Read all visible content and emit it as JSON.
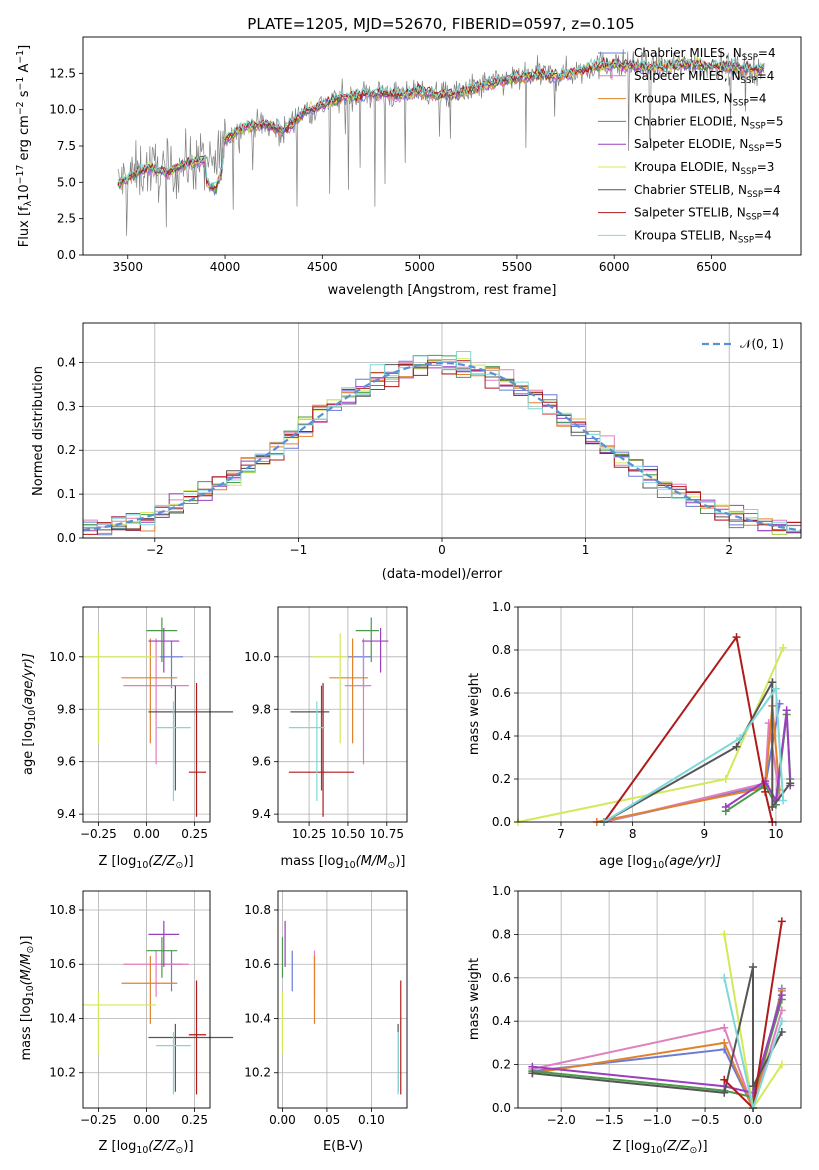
{
  "figure": {
    "title": "PLATE=1205, MJD=52670, FIBERID=0597, z=0.105"
  },
  "palette": {
    "Chabrier MILES": "#6b7bd6",
    "Salpeter MILES": "#e07fbd",
    "Kroupa MILES": "#e0822e",
    "Chabrier ELODIE": "#4a9a4a",
    "Salpeter ELODIE": "#9a3fc0",
    "Kroupa ELODIE": "#d4e85a",
    "Chabrier STELIB": "#555555",
    "Salpeter STELIB": "#b01a1a",
    "Kroupa STELIB": "#7fd8d8"
  },
  "chart_data": [
    {
      "id": "spectrum",
      "type": "line",
      "xlabel": "wavelength [Angstrom, rest frame]",
      "ylabel_main": "Flux [f",
      "ylabel_sub": "λ",
      "ylabel_unit": "10",
      "ylabel_exp": "−17",
      "ylabel_rest": " erg cm",
      "ylabel_exp2": "−2",
      "ylabel_rest2": " s",
      "ylabel_exp3": "−1",
      "ylabel_rest3": " A",
      "ylabel_exp4": "−1",
      "ylabel_end": "]",
      "xlim": [
        3270,
        6960
      ],
      "ylim": [
        0,
        15
      ],
      "xticks": [
        3500,
        4000,
        4500,
        5000,
        5500,
        6000,
        6500
      ],
      "yticks": [
        0.0,
        2.5,
        5.0,
        7.5,
        10.0,
        12.5
      ],
      "ytick_labels": [
        "0.0",
        "2.5",
        "5.0",
        "7.5",
        "10.0",
        "12.5"
      ],
      "continuum": [
        [
          3450,
          4.9
        ],
        [
          3500,
          5.3
        ],
        [
          3600,
          6.0
        ],
        [
          3700,
          5.7
        ],
        [
          3800,
          6.3
        ],
        [
          3900,
          6.5
        ],
        [
          3950,
          6.0
        ],
        [
          4000,
          8.0
        ],
        [
          4100,
          8.8
        ],
        [
          4200,
          9.0
        ],
        [
          4300,
          8.5
        ],
        [
          4400,
          9.8
        ],
        [
          4500,
          10.3
        ],
        [
          4600,
          10.8
        ],
        [
          4700,
          11.0
        ],
        [
          4800,
          11.1
        ],
        [
          4900,
          11.0
        ],
        [
          5000,
          11.3
        ],
        [
          5100,
          11.0
        ],
        [
          5200,
          11.1
        ],
        [
          5300,
          11.6
        ],
        [
          5400,
          11.9
        ],
        [
          5500,
          12.2
        ],
        [
          5600,
          12.4
        ],
        [
          5700,
          12.3
        ],
        [
          5800,
          12.6
        ],
        [
          5900,
          13.0
        ],
        [
          6000,
          13.1
        ],
        [
          6100,
          13.0
        ],
        [
          6200,
          12.9
        ],
        [
          6300,
          13.0
        ],
        [
          6400,
          13.2
        ],
        [
          6500,
          13.0
        ],
        [
          6600,
          12.9
        ],
        [
          6700,
          12.8
        ],
        [
          6770,
          12.8
        ]
      ],
      "legend": [
        {
          "label": "Chabrier MILES, N",
          "sub": "SSP",
          "end": "=4",
          "key": "Chabrier MILES",
          "marker": false
        },
        {
          "label": "Salpeter MILES, N",
          "sub": "SSP",
          "end": "=4",
          "key": "Salpeter MILES",
          "marker": true
        },
        {
          "label": "Kroupa MILES, N",
          "sub": "SSP",
          "end": "=4",
          "key": "Kroupa MILES",
          "marker": false
        },
        {
          "label": "Chabrier ELODIE, N",
          "sub": "SSP",
          "end": "=5",
          "key": "Chabrier ELODIE",
          "marker": false
        },
        {
          "label": "Salpeter ELODIE, N",
          "sub": "SSP",
          "end": "=5",
          "key": "Salpeter ELODIE",
          "marker": false
        },
        {
          "label": "Kroupa ELODIE, N",
          "sub": "SSP",
          "end": "=3",
          "key": "Kroupa ELODIE",
          "marker": false
        },
        {
          "label": "Chabrier STELIB, N",
          "sub": "SSP",
          "end": "=4",
          "key": "Chabrier STELIB",
          "marker": false
        },
        {
          "label": "Salpeter STELIB, N",
          "sub": "SSP",
          "end": "=4",
          "key": "Salpeter STELIB",
          "marker": false
        },
        {
          "label": "Kroupa STELIB, N",
          "sub": "SSP",
          "end": "=4",
          "key": "Kroupa STELIB",
          "marker": false
        }
      ]
    },
    {
      "id": "residuals",
      "type": "step-histogram",
      "xlabel": "(data-model)/error",
      "ylabel": "Normed distribution",
      "xlim": [
        -2.5,
        2.5
      ],
      "ylim": [
        0,
        0.49
      ],
      "xticks": [
        -2,
        -1,
        0,
        1,
        2
      ],
      "xtick_labels": [
        "−2",
        "−1",
        "0",
        "1",
        "2"
      ],
      "yticks": [
        0.0,
        0.1,
        0.2,
        0.3,
        0.4
      ],
      "ytick_labels": [
        "0.0",
        "0.1",
        "0.2",
        "0.3",
        "0.4"
      ],
      "bin_width": 0.1,
      "legend_label": "𝒩(0, 1)",
      "legend_color": "#5b8fd6"
    },
    {
      "id": "age-vs-Z",
      "type": "errorbar",
      "xlabel": "Z [log",
      "xlabel_sub": "10",
      "xlabel_rest": "(Z/Z",
      "xlabel_sub2": "⊙",
      "xlabel_end": ")]",
      "ylabel": "age  [log",
      "ylabel_sub": "10",
      "ylabel_rest": "(age/yr)]",
      "xlim": [
        -0.33,
        0.33
      ],
      "ylim": [
        9.37,
        10.19
      ],
      "xticks": [
        -0.25,
        0.0,
        0.25
      ],
      "xtick_labels": [
        "−0.25",
        "0.00",
        "0.25"
      ],
      "yticks": [
        9.4,
        9.6,
        9.8,
        10.0
      ],
      "ytick_labels": [
        "9.4",
        "9.6",
        "9.8",
        "10.0"
      ]
    },
    {
      "id": "age-vs-mass",
      "type": "errorbar",
      "xlabel": "mass [log",
      "xlabel_sub": "10",
      "xlabel_rest": "(M/M",
      "xlabel_sub2": "⊙",
      "xlabel_end": ")]",
      "xlim": [
        10.05,
        10.88
      ],
      "ylim": [
        9.37,
        10.19
      ],
      "xticks": [
        10.25,
        10.5,
        10.75
      ],
      "xtick_labels": [
        "10.25",
        "10.50",
        "10.75"
      ],
      "yticks": [
        9.4,
        9.6,
        9.8,
        10.0
      ],
      "ytick_labels": [
        "9.4",
        "9.6",
        "9.8",
        "10.0"
      ]
    },
    {
      "id": "weight-vs-age",
      "type": "line",
      "xlabel": "age  [log",
      "xlabel_sub": "10",
      "xlabel_rest": "(age/yr)]",
      "ylabel": "mass weight",
      "xlim": [
        6.4,
        10.35
      ],
      "ylim": [
        0,
        1.0
      ],
      "xticks": [
        7,
        8,
        9,
        10
      ],
      "xtick_labels": [
        "7",
        "8",
        "9",
        "10"
      ],
      "yticks": [
        0.0,
        0.2,
        0.4,
        0.6,
        0.8,
        1.0
      ],
      "ytick_labels": [
        "0.0",
        "0.2",
        "0.4",
        "0.6",
        "0.8",
        "1.0"
      ]
    },
    {
      "id": "mass-vs-Z",
      "type": "errorbar",
      "xlabel": "Z [log",
      "xlabel_sub": "10",
      "xlabel_rest": "(Z/Z",
      "xlabel_sub2": "⊙",
      "xlabel_end": ")]",
      "ylabel": "mass [log",
      "ylabel_sub": "10",
      "ylabel_rest": "(M/M",
      "ylabel_sub2": "⊙",
      "ylabel_end": ")]",
      "xlim": [
        -0.33,
        0.33
      ],
      "ylim": [
        10.07,
        10.87
      ],
      "xticks": [
        -0.25,
        0.0,
        0.25
      ],
      "xtick_labels": [
        "−0.25",
        "0.00",
        "0.25"
      ],
      "yticks": [
        10.2,
        10.4,
        10.6,
        10.8
      ],
      "ytick_labels": [
        "10.2",
        "10.4",
        "10.6",
        "10.8"
      ]
    },
    {
      "id": "mass-vs-EBV",
      "type": "errorbar",
      "xlabel": "E(B-V)",
      "xlim": [
        -0.005,
        0.14
      ],
      "ylim": [
        10.07,
        10.87
      ],
      "xticks": [
        0.0,
        0.05,
        0.1
      ],
      "xtick_labels": [
        "0.00",
        "0.05",
        "0.10"
      ],
      "yticks": [
        10.2,
        10.4,
        10.6,
        10.8
      ],
      "ytick_labels": [
        "10.2",
        "10.4",
        "10.6",
        "10.8"
      ]
    },
    {
      "id": "weight-vs-Z",
      "type": "line",
      "xlabel": "Z [log",
      "xlabel_sub": "10",
      "xlabel_rest": "(Z/Z",
      "xlabel_sub2": "⊙",
      "xlabel_end": ")]",
      "ylabel": "mass weight",
      "xlim": [
        -2.45,
        0.5
      ],
      "ylim": [
        0,
        1.0
      ],
      "xticks": [
        -2.0,
        -1.5,
        -1.0,
        -0.5,
        0.0
      ],
      "xtick_labels": [
        "−2.0",
        "−1.5",
        "−1.0",
        "−0.5",
        "0.0"
      ],
      "yticks": [
        0.0,
        0.2,
        0.4,
        0.6,
        0.8,
        1.0
      ],
      "ytick_labels": [
        "0.0",
        "0.2",
        "0.4",
        "0.6",
        "0.8",
        "1.0"
      ]
    }
  ],
  "models": [
    {
      "key": "Chabrier MILES",
      "Z": 0.13,
      "Zerr": [
        0.06,
        0.06
      ],
      "age": 10.0,
      "ageerr": [
        0.12,
        0.06
      ],
      "mass": 10.6,
      "masserr": [
        0.1,
        0.05
      ],
      "ebv": 0.011,
      "ebverr": [
        0.0,
        0.0
      ],
      "age_w": [
        [
          7.6,
          0.0
        ],
        [
          9.85,
          0.17
        ],
        [
          10.05,
          0.55
        ]
      ],
      "Z_w": [
        [
          -2.3,
          0.17
        ],
        [
          -0.3,
          0.27
        ],
        [
          0.0,
          0.0
        ],
        [
          0.3,
          0.55
        ]
      ]
    },
    {
      "key": "Salpeter MILES",
      "Z": 0.05,
      "Zerr": [
        0.17,
        0.17
      ],
      "age": 9.89,
      "ageerr": [
        0.3,
        0.18
      ],
      "mass": 10.6,
      "masserr": [
        0.12,
        0.05
      ],
      "ebv": 0.036,
      "ebverr": [
        0.0,
        0.0
      ],
      "age_w": [
        [
          7.6,
          0.0
        ],
        [
          9.85,
          0.18
        ],
        [
          9.9,
          0.46
        ],
        [
          10.05,
          0.12
        ]
      ],
      "Z_w": [
        [
          -2.3,
          0.18
        ],
        [
          -0.3,
          0.37
        ],
        [
          0.0,
          0.0
        ],
        [
          0.3,
          0.45
        ]
      ]
    },
    {
      "key": "Kroupa MILES",
      "Z": 0.02,
      "Zerr": [
        0.15,
        0.14
      ],
      "age": 9.92,
      "ageerr": [
        0.25,
        0.15
      ],
      "mass": 10.53,
      "masserr": [
        0.15,
        0.1
      ],
      "ebv": 0.036,
      "ebverr": [
        0.0,
        0.0
      ],
      "age_w": [
        [
          7.5,
          0.0
        ],
        [
          9.85,
          0.16
        ],
        [
          9.95,
          0.54
        ],
        [
          10.05,
          0.15
        ]
      ],
      "Z_w": [
        [
          -2.3,
          0.16
        ],
        [
          -0.3,
          0.3
        ],
        [
          0.0,
          0.0
        ],
        [
          0.3,
          0.54
        ]
      ]
    },
    {
      "key": "Chabrier ELODIE",
      "Z": 0.08,
      "Zerr": [
        0.08,
        0.08
      ],
      "age": 10.1,
      "ageerr": [
        0.12,
        0.05
      ],
      "mass": 10.65,
      "masserr": [
        0.1,
        0.05
      ],
      "ebv": 0.0,
      "ebverr": [
        0.0,
        0.0
      ],
      "age_w": [
        [
          9.3,
          0.05
        ],
        [
          9.85,
          0.17
        ],
        [
          10.0,
          0.08
        ],
        [
          10.15,
          0.5
        ],
        [
          10.2,
          0.2
        ]
      ],
      "Z_w": [
        [
          -2.3,
          0.17
        ],
        [
          -0.3,
          0.08
        ],
        [
          0.0,
          0.05
        ],
        [
          0.3,
          0.5
        ]
      ]
    },
    {
      "key": "Salpeter ELODIE",
      "Z": 0.09,
      "Zerr": [
        0.08,
        0.08
      ],
      "age": 10.06,
      "ageerr": [
        0.12,
        0.05
      ],
      "mass": 10.71,
      "masserr": [
        0.12,
        0.05
      ],
      "ebv": 0.003,
      "ebverr": [
        0.0,
        0.0
      ],
      "age_w": [
        [
          9.3,
          0.07
        ],
        [
          9.85,
          0.19
        ],
        [
          10.0,
          0.1
        ],
        [
          10.15,
          0.52
        ],
        [
          10.2,
          0.17
        ]
      ],
      "Z_w": [
        [
          -2.3,
          0.19
        ],
        [
          -0.3,
          0.1
        ],
        [
          0.0,
          0.07
        ],
        [
          0.3,
          0.52
        ]
      ]
    },
    {
      "key": "Kroupa ELODIE",
      "Z": -0.25,
      "Zerr": [
        0.08,
        0.3
      ],
      "age": 10.0,
      "ageerr": [
        0.33,
        0.09
      ],
      "mass": 10.45,
      "masserr": [
        0.18,
        0.05
      ],
      "ebv": 0.0,
      "ebverr": [
        0.0,
        0.0
      ],
      "age_w": [
        [
          6.4,
          0.0
        ],
        [
          9.3,
          0.2
        ],
        [
          10.1,
          0.81
        ]
      ],
      "Z_w": [
        [
          -0.3,
          0.8
        ],
        [
          0.0,
          0.0
        ],
        [
          0.3,
          0.2
        ]
      ]
    },
    {
      "key": "Chabrier STELIB",
      "Z": 0.15,
      "Zerr": [
        0.14,
        0.3
      ],
      "age": 9.79,
      "ageerr": [
        0.3,
        0.1
      ],
      "mass": 10.33,
      "masserr": [
        0.2,
        0.05
      ],
      "ebv": 0.13,
      "ebverr": [
        0.0,
        0.0
      ],
      "age_w": [
        [
          7.6,
          0.0
        ],
        [
          9.45,
          0.35
        ],
        [
          9.95,
          0.65
        ],
        [
          9.95,
          0.07
        ],
        [
          10.2,
          0.18
        ]
      ],
      "Z_w": [
        [
          -2.3,
          0.16
        ],
        [
          -0.3,
          0.07
        ],
        [
          0.0,
          0.65
        ],
        [
          0.0,
          0.1
        ],
        [
          0.3,
          0.35
        ]
      ]
    },
    {
      "key": "Salpeter STELIB",
      "Z": 0.26,
      "Zerr": [
        0.04,
        0.05
      ],
      "age": 9.56,
      "ageerr": [
        0.17,
        0.34
      ],
      "mass": 10.34,
      "masserr": [
        0.22,
        0.2
      ],
      "ebv": 0.133,
      "ebverr": [
        0.0,
        0.0
      ],
      "age_w": [
        [
          7.6,
          0.0
        ],
        [
          9.45,
          0.86
        ],
        [
          9.85,
          0.14
        ],
        [
          9.95,
          0.0
        ]
      ],
      "Z_w": [
        [
          -0.3,
          0.13
        ],
        [
          0.0,
          0.0
        ],
        [
          0.3,
          0.86
        ]
      ]
    },
    {
      "key": "Kroupa STELIB",
      "Z": 0.14,
      "Zerr": [
        0.09,
        0.09
      ],
      "age": 9.73,
      "ageerr": [
        0.28,
        0.1
      ],
      "mass": 10.3,
      "masserr": [
        0.18,
        0.05
      ],
      "ebv": 0.13,
      "ebverr": [
        0.0,
        0.0
      ],
      "age_w": [
        [
          7.6,
          0.0
        ],
        [
          9.5,
          0.39
        ],
        [
          10.0,
          0.62
        ],
        [
          10.1,
          0.1
        ]
      ],
      "Z_w": [
        [
          -0.3,
          0.6
        ],
        [
          0.0,
          0.0
        ],
        [
          0.3,
          0.4
        ]
      ]
    }
  ]
}
